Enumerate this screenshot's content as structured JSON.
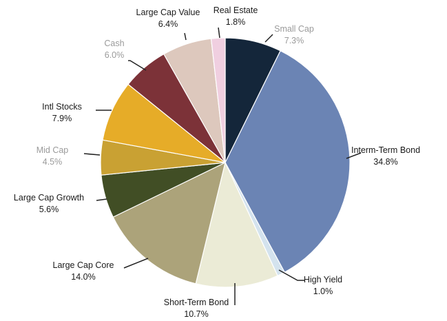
{
  "chart_data": {
    "type": "pie",
    "slices": [
      {
        "name": "Small Cap",
        "value": 7.3,
        "label": "7.3%",
        "color": "#14263a"
      },
      {
        "name": "Interm-Term Bond",
        "value": 34.8,
        "label": "34.8%",
        "color": "#6b84b4"
      },
      {
        "name": "High Yield",
        "value": 1.0,
        "label": "1.0%",
        "color": "#d4e3ee"
      },
      {
        "name": "Short-Term Bond",
        "value": 10.7,
        "label": "10.7%",
        "color": "#ebebd6"
      },
      {
        "name": "Large Cap Core",
        "value": 14.0,
        "label": "14.0%",
        "color": "#aca37a"
      },
      {
        "name": "Large Cap Growth",
        "value": 5.6,
        "label": "5.6%",
        "color": "#414e25"
      },
      {
        "name": "Mid Cap",
        "value": 4.5,
        "label": "4.5%",
        "color": "#c9a133"
      },
      {
        "name": "Intl Stocks",
        "value": 7.9,
        "label": "7.9%",
        "color": "#e6ac28"
      },
      {
        "name": "Cash",
        "value": 6.0,
        "label": "6.0%",
        "color": "#7c3238"
      },
      {
        "name": "Large Cap Value",
        "value": 6.4,
        "label": "6.4%",
        "color": "#ddc8bd"
      },
      {
        "name": "Real Estate",
        "value": 1.8,
        "label": "1.8%",
        "color": "#f0cfe0"
      }
    ]
  }
}
